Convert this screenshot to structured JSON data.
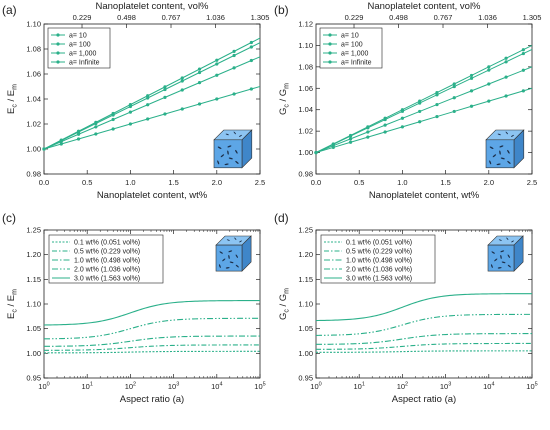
{
  "colors": {
    "series": "#2bb08a",
    "axis": "#222222",
    "cube_face": "#5da6e6",
    "cube_top": "#8cc4f2",
    "cube_side": "#3f86c9",
    "platelet": "#1c2f4a"
  },
  "chart_data": [
    {
      "id": "a",
      "type": "line",
      "panel_label": "(a)",
      "xlabel": "Nanoplatelet content, wt%",
      "top_xlabel": "Nanoplatelet content, vol%",
      "ylabel": "E_c / E_m",
      "xlim": [
        0,
        2.5
      ],
      "ylim": [
        0.98,
        1.1
      ],
      "xticks": [
        0.0,
        0.5,
        1.0,
        1.5,
        2.0,
        2.5
      ],
      "xticklabels": [
        "0.0",
        "0.5",
        "1.0",
        "1.5",
        "2.0",
        "2.5"
      ],
      "yticks": [
        0.98,
        1.0,
        1.02,
        1.04,
        1.06,
        1.08,
        1.1
      ],
      "yticklabels": [
        "0.98",
        "1.00",
        "1.02",
        "1.04",
        "1.06",
        "1.08",
        "1.10"
      ],
      "top_ticks_at_wt": [
        0.44,
        0.955,
        1.47,
        1.985,
        2.5
      ],
      "top_ticklabels": [
        "0.229",
        "0.498",
        "0.767",
        "1.036",
        "1.305"
      ],
      "grid": false,
      "legend_position": "top-left",
      "x": [
        0,
        0.2,
        0.4,
        0.6,
        0.8,
        1.0,
        1.2,
        1.4,
        1.6,
        1.8,
        2.0,
        2.2,
        2.4,
        2.5
      ],
      "series": [
        {
          "name": "a= 10",
          "marker": true,
          "slope": 0.02
        },
        {
          "name": "a= 100",
          "marker": true,
          "slope": 0.0295
        },
        {
          "name": "a= 1,000",
          "marker": true,
          "slope": 0.034
        },
        {
          "name": "a= Infinite",
          "marker": true,
          "slope": 0.0355
        }
      ]
    },
    {
      "id": "b",
      "type": "line",
      "panel_label": "(b)",
      "xlabel": "Nanoplatelet content, wt%",
      "top_xlabel": "Nanoplatelet content, vol%",
      "ylabel": "G_c / G_m",
      "xlim": [
        0,
        2.5
      ],
      "ylim": [
        0.98,
        1.12
      ],
      "xticks": [
        0.0,
        0.5,
        1.0,
        1.5,
        2.0,
        2.5
      ],
      "xticklabels": [
        "0.0",
        "0.5",
        "1.0",
        "1.5",
        "2.0",
        "2.5"
      ],
      "yticks": [
        0.98,
        1.0,
        1.02,
        1.04,
        1.06,
        1.08,
        1.1,
        1.12
      ],
      "yticklabels": [
        "0.98",
        "1.00",
        "1.02",
        "1.04",
        "1.06",
        "1.08",
        "1.10",
        "1.12"
      ],
      "top_ticks_at_wt": [
        0.44,
        0.955,
        1.47,
        1.985,
        2.5
      ],
      "top_ticklabels": [
        "0.229",
        "0.498",
        "0.767",
        "1.036",
        "1.305"
      ],
      "grid": false,
      "legend_position": "top-left",
      "x": [
        0,
        0.2,
        0.4,
        0.6,
        0.8,
        1.0,
        1.2,
        1.4,
        1.6,
        1.8,
        2.0,
        2.2,
        2.4,
        2.5
      ],
      "series": [
        {
          "name": "a= 10",
          "marker": true,
          "slope": 0.024
        },
        {
          "name": "a= 100",
          "marker": true,
          "slope": 0.032
        },
        {
          "name": "a= 1,000",
          "marker": true,
          "slope": 0.0385
        },
        {
          "name": "a= Infinite",
          "marker": true,
          "slope": 0.04
        }
      ]
    },
    {
      "id": "c",
      "type": "line",
      "panel_label": "(c)",
      "xlabel": "Aspect ratio (a)",
      "ylabel": "E_c / E_m",
      "xscale": "log",
      "xlim": [
        1,
        100000
      ],
      "ylim": [
        0.95,
        1.25
      ],
      "xticks": [
        1,
        10,
        100,
        1000,
        10000,
        100000
      ],
      "xtick_exponents": [
        "0",
        "1",
        "2",
        "3",
        "4",
        "5"
      ],
      "yticks": [
        0.95,
        1.0,
        1.05,
        1.1,
        1.15,
        1.2,
        1.25
      ],
      "yticklabels": [
        "0.95",
        "1.00",
        "1.05",
        "1.10",
        "1.15",
        "1.20",
        "1.25"
      ],
      "grid": false,
      "legend_position": "top-left",
      "series": [
        {
          "name": "0.1 wt% (0.051 vol%)",
          "dash": "2,1.5",
          "low": 1.001,
          "high": 1.004
        },
        {
          "name": "0.5 wt% (0.229 vol%)",
          "dash": "5,2,1.5,2",
          "low": 1.006,
          "high": 1.017
        },
        {
          "name": "1.0 wt% (0.498 vol%)",
          "dash": "6,2,1.5,2",
          "low": 1.014,
          "high": 1.035
        },
        {
          "name": "2.0 wt% (1.036 vol%)",
          "dash": "6,2,1.5,2,1.5,2",
          "low": 1.029,
          "high": 1.071
        },
        {
          "name": "3.0 wt% (1.563 vol%)",
          "dash": "",
          "low": 1.057,
          "high": 1.107
        }
      ]
    },
    {
      "id": "d",
      "type": "line",
      "panel_label": "(d)",
      "xlabel": "Aspect ratio (a)",
      "ylabel": "G_c / G_m",
      "xscale": "log",
      "xlim": [
        1,
        100000
      ],
      "ylim": [
        0.95,
        1.25
      ],
      "xticks": [
        1,
        10,
        100,
        1000,
        10000,
        100000
      ],
      "xtick_exponents": [
        "0",
        "1",
        "2",
        "3",
        "4",
        "5"
      ],
      "yticks": [
        0.95,
        1.0,
        1.05,
        1.1,
        1.15,
        1.2,
        1.25
      ],
      "yticklabels": [
        "0.95",
        "1.00",
        "1.05",
        "1.10",
        "1.15",
        "1.20",
        "1.25"
      ],
      "grid": false,
      "legend_position": "top-left",
      "series": [
        {
          "name": "0.1 wt% (0.051 vol%)",
          "dash": "2,1.5",
          "low": 1.002,
          "high": 1.005
        },
        {
          "name": "0.5 wt% (0.229 vol%)",
          "dash": "5,2,1.5,2",
          "low": 1.008,
          "high": 1.02
        },
        {
          "name": "1.0 wt% (0.498 vol%)",
          "dash": "6,2,1.5,2",
          "low": 1.018,
          "high": 1.04
        },
        {
          "name": "2.0 wt% (1.036 vol%)",
          "dash": "6,2,1.5,2,1.5,2",
          "low": 1.036,
          "high": 1.079
        },
        {
          "name": "3.0 wt% (1.563 vol%)",
          "dash": "",
          "low": 1.066,
          "high": 1.121
        }
      ]
    }
  ]
}
